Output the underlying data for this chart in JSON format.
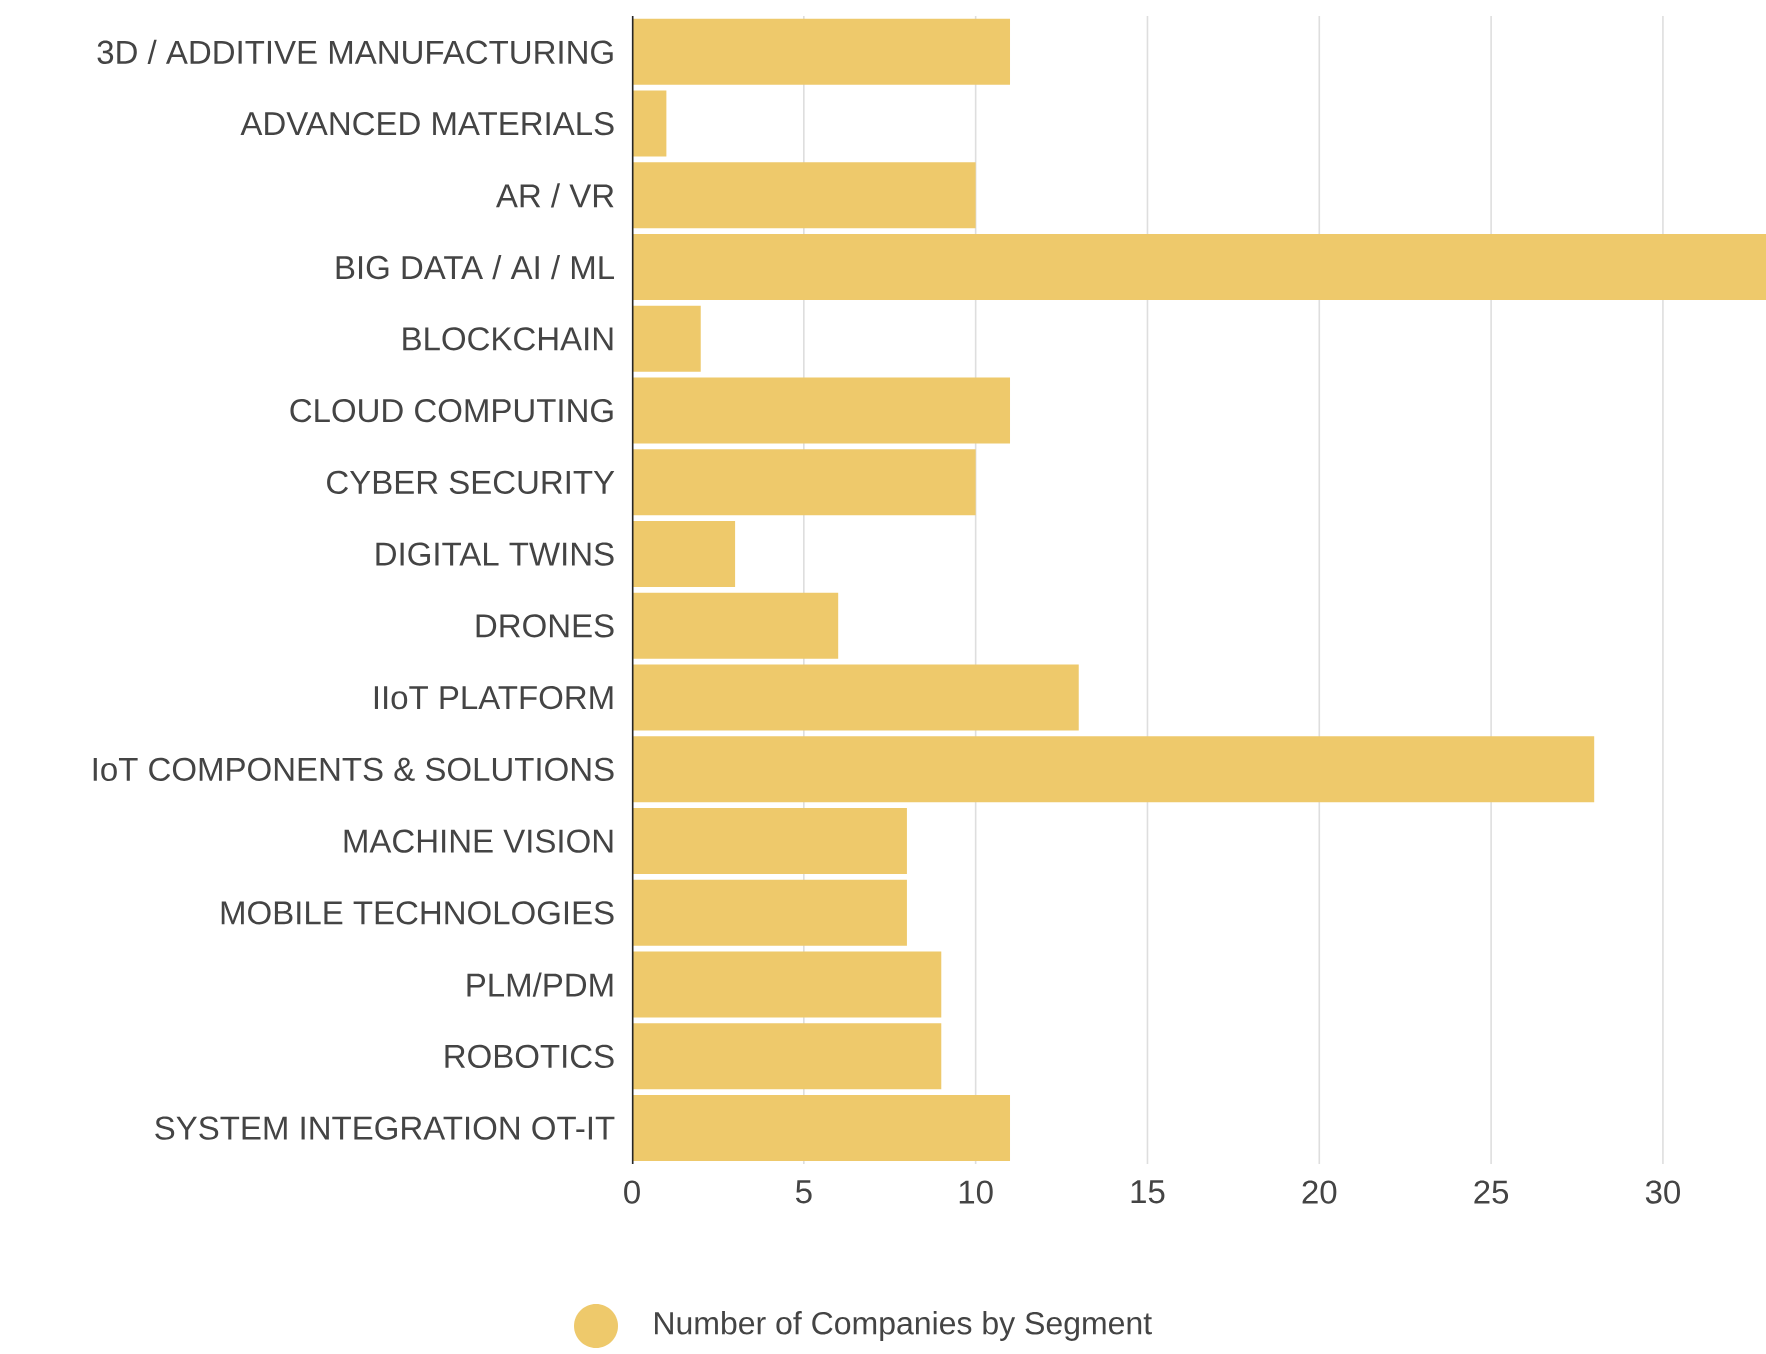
{
  "chart_data": {
    "type": "bar",
    "orientation": "horizontal",
    "categories": [
      "3D / ADDITIVE MANUFACTURING",
      "ADVANCED MATERIALS",
      "AR / VR",
      "BIG DATA / AI / ML",
      "BLOCKCHAIN",
      "CLOUD COMPUTING",
      "CYBER SECURITY",
      "DIGITAL TWINS",
      "DRONES",
      "IIoT PLATFORM",
      "IoT COMPONENTS & SOLUTIONS",
      "MACHINE VISION",
      "MOBILE TECHNOLOGIES",
      "PLM/PDM",
      "ROBOTICS",
      "SYSTEM INTEGRATION OT-IT"
    ],
    "series": [
      {
        "name": "Number of Companies by Segment",
        "color": "#eec96b",
        "values": [
          11,
          1,
          10,
          33,
          2,
          11,
          10,
          3,
          6,
          13,
          28,
          8,
          8,
          9,
          9,
          11
        ]
      }
    ],
    "xlim": [
      0,
      33
    ],
    "xticks": [
      0,
      5,
      10,
      15,
      20,
      25,
      30
    ],
    "grid": "x",
    "legend": "bottom"
  }
}
